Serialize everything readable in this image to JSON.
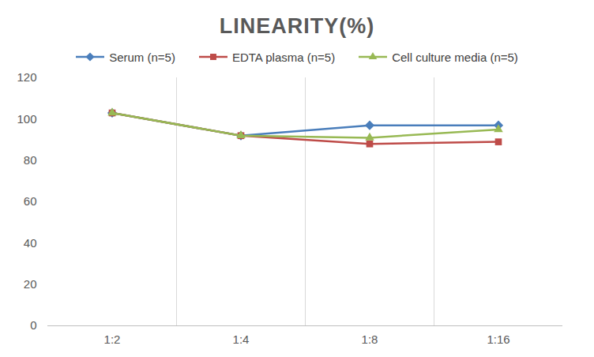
{
  "chart_data": {
    "type": "line",
    "title": "LINEARITY(%)",
    "categories": [
      "1:2",
      "1:4",
      "1:8",
      "1:16"
    ],
    "series": [
      {
        "name": "Serum (n=5)",
        "color": "#4a7ebb",
        "marker": "diamond",
        "values": [
          103,
          92,
          97,
          97
        ]
      },
      {
        "name": "EDTA plasma (n=5)",
        "color": "#be4b48",
        "marker": "square",
        "values": [
          103,
          92,
          88,
          89
        ]
      },
      {
        "name": "Cell culture media (n=5)",
        "color": "#98b954",
        "marker": "triangle",
        "values": [
          103,
          92,
          91,
          95
        ]
      }
    ],
    "ylim": [
      0,
      120
    ],
    "yticks": [
      0,
      20,
      40,
      60,
      80,
      100,
      120
    ],
    "grid": true,
    "legend": "top"
  }
}
